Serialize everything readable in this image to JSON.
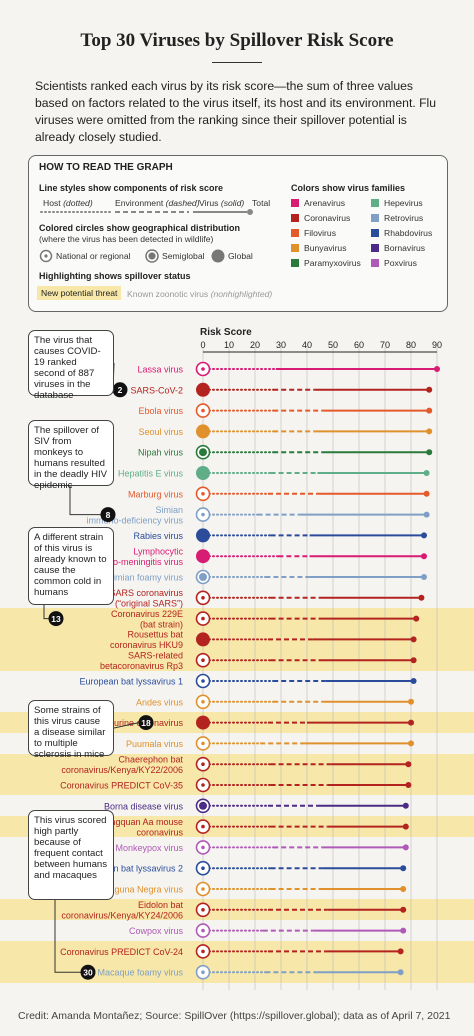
{
  "title": "Top 30 Viruses by Spillover Risk Score",
  "intro": "Scientists ranked each virus by its risk score—the sum of three values based on factors related to the virus itself, its host and its environment. Flu viruses were omitted from the ranking since their spillover potential is already closely studied.",
  "legend": {
    "heading": "HOW TO READ THE GRAPH",
    "line_styles_title": "Line styles show components of risk score",
    "host_label": "Host",
    "host_style": "(dotted)",
    "env_label": "Environment",
    "env_style": "(dashed)",
    "virus_label": "Virus",
    "virus_style": "(solid)",
    "total_label": "Total",
    "circles_title": "Colored circles show geographical distribution",
    "circles_sub": "(where the virus has been detected in wildlife)",
    "dist_national": "National or regional",
    "dist_semiglobal": "Semiglobal",
    "dist_global": "Global",
    "highlight_title": "Highlighting shows spillover status",
    "new_threat": "New potential threat",
    "known_zoonotic": "Known zoonotic virus",
    "known_zoonotic_note": "(nonhighlighted)",
    "families_title": "Colors show virus families",
    "families": [
      {
        "name": "Arenavirus",
        "color": "#d81b73"
      },
      {
        "name": "Coronavirus",
        "color": "#b3231f"
      },
      {
        "name": "Filovirus",
        "color": "#e45a2b"
      },
      {
        "name": "Bunyavirus",
        "color": "#e0912c"
      },
      {
        "name": "Paramyxovirus",
        "color": "#2a7a3b"
      },
      {
        "name": "Hepevirus",
        "color": "#5fae88"
      },
      {
        "name": "Retrovirus",
        "color": "#7f9fc6"
      },
      {
        "name": "Rhabdovirus",
        "color": "#2b4c9b"
      },
      {
        "name": "Bornavirus",
        "color": "#4b2b86"
      },
      {
        "name": "Poxvirus",
        "color": "#b05ab7"
      }
    ]
  },
  "annotations": [
    {
      "text": "The virus that causes COVID-19 ranked second of 887 viruses in the database",
      "marker": "2"
    },
    {
      "text": "The spillover of SIV from monkeys to humans resulted in the deadly HIV epidemic",
      "marker": "8"
    },
    {
      "text": "A different strain of this virus is already known to cause the common cold in humans",
      "marker": "13"
    },
    {
      "text": "Some strains of this virus cause a disease similar to multiple sclerosis in mice",
      "marker": "18"
    },
    {
      "text": "This virus scored high partly because of frequent contact between humans and macaques",
      "marker": "30"
    }
  ],
  "chart_data": {
    "type": "line",
    "title": "Risk Score",
    "xlim": [
      0,
      90
    ],
    "ticks": [
      0,
      10,
      20,
      30,
      40,
      50,
      60,
      70,
      80,
      90
    ],
    "series": [
      {
        "name": "Lassa virus",
        "family": "Arenavirus",
        "distribution": "national",
        "new_threat": false,
        "host": 28,
        "environment": 0,
        "virus": 62,
        "total": 90
      },
      {
        "name": "SARS-CoV-2",
        "family": "Coronavirus",
        "distribution": "global",
        "new_threat": false,
        "host": 27,
        "environment": 16,
        "virus": 44,
        "total": 87
      },
      {
        "name": "Ebola virus",
        "family": "Filovirus",
        "distribution": "national",
        "new_threat": false,
        "host": 27,
        "environment": 19,
        "virus": 41,
        "total": 87
      },
      {
        "name": "Seoul virus",
        "family": "Bunyavirus",
        "distribution": "global",
        "new_threat": false,
        "host": 27,
        "environment": 16,
        "virus": 44,
        "total": 87
      },
      {
        "name": "Nipah virus",
        "family": "Paramyxovirus",
        "distribution": "semiglobal",
        "new_threat": false,
        "host": 27,
        "environment": 19,
        "virus": 41,
        "total": 87
      },
      {
        "name": "Hepatitis E virus",
        "family": "Hepevirus",
        "distribution": "global",
        "new_threat": false,
        "host": 26,
        "environment": 18,
        "virus": 42,
        "total": 86
      },
      {
        "name": "Marburg virus",
        "family": "Filovirus",
        "distribution": "national",
        "new_threat": false,
        "host": 25,
        "environment": 19,
        "virus": 42,
        "total": 86
      },
      {
        "name": "Simian immuno-deficiency virus",
        "family": "Retrovirus",
        "distribution": "national",
        "new_threat": false,
        "host": 21,
        "environment": 16,
        "virus": 49,
        "total": 86
      },
      {
        "name": "Rabies virus",
        "family": "Rhabdovirus",
        "distribution": "global",
        "new_threat": false,
        "host": 26,
        "environment": 15,
        "virus": 44,
        "total": 85
      },
      {
        "name": "Lymphocytic chorio-meningitis virus",
        "family": "Arenavirus",
        "distribution": "global",
        "new_threat": false,
        "host": 29,
        "environment": 12,
        "virus": 44,
        "total": 85
      },
      {
        "name": "Simian foamy virus",
        "family": "Retrovirus",
        "distribution": "semiglobal",
        "new_threat": false,
        "host": 24,
        "environment": 17,
        "virus": 44,
        "total": 85
      },
      {
        "name": "SARS coronavirus (“original SARS”)",
        "family": "Coronavirus",
        "distribution": "national",
        "new_threat": false,
        "host": 26,
        "environment": 19,
        "virus": 39,
        "total": 84
      },
      {
        "name": "Coronavirus 229E (bat strain)",
        "family": "Coronavirus",
        "distribution": "national",
        "new_threat": true,
        "host": 26,
        "environment": 19,
        "virus": 37,
        "total": 82
      },
      {
        "name": "Rousettus bat coronavirus HKU9",
        "family": "Coronavirus",
        "distribution": "global",
        "new_threat": true,
        "host": 25,
        "environment": 17,
        "virus": 39,
        "total": 81
      },
      {
        "name": "SARS-related betacoronavirus Rp3",
        "family": "Coronavirus",
        "distribution": "national",
        "new_threat": true,
        "host": 26,
        "environment": 19,
        "virus": 36,
        "total": 81
      },
      {
        "name": "European bat lyssavirus 1",
        "family": "Rhabdovirus",
        "distribution": "national",
        "new_threat": false,
        "host": 27,
        "environment": 20,
        "virus": 34,
        "total": 81
      },
      {
        "name": "Andes virus",
        "family": "Bunyavirus",
        "distribution": "national",
        "new_threat": false,
        "host": 27,
        "environment": 19,
        "virus": 34,
        "total": 80
      },
      {
        "name": "Murine coronavirus",
        "family": "Coronavirus",
        "distribution": "global",
        "new_threat": true,
        "host": 25,
        "environment": 15,
        "virus": 40,
        "total": 80
      },
      {
        "name": "Puumala virus",
        "family": "Bunyavirus",
        "distribution": "national",
        "new_threat": false,
        "host": 22,
        "environment": 17,
        "virus": 41,
        "total": 80
      },
      {
        "name": "Chaerephon bat coronavirus/Kenya/KY22/2006",
        "family": "Coronavirus",
        "distribution": "national",
        "new_threat": true,
        "host": 26,
        "environment": 23,
        "virus": 30,
        "total": 79
      },
      {
        "name": "Coronavirus PREDICT CoV-35",
        "family": "Coronavirus",
        "distribution": "national",
        "new_threat": true,
        "host": 26,
        "environment": 22,
        "virus": 31,
        "total": 79
      },
      {
        "name": "Borna disease virus",
        "family": "Bornavirus",
        "distribution": "semiglobal",
        "new_threat": false,
        "host": 25,
        "environment": 19,
        "virus": 34,
        "total": 78
      },
      {
        "name": "Longquan Aa mouse coronavirus",
        "family": "Coronavirus",
        "distribution": "national",
        "new_threat": true,
        "host": 26,
        "environment": 22,
        "virus": 30,
        "total": 78
      },
      {
        "name": "Monkeypox virus",
        "family": "Poxvirus",
        "distribution": "national",
        "new_threat": false,
        "host": 27,
        "environment": 19,
        "virus": 32,
        "total": 78
      },
      {
        "name": "European bat lyssavirus 2",
        "family": "Rhabdovirus",
        "distribution": "national",
        "new_threat": false,
        "host": 26,
        "environment": 20,
        "virus": 31,
        "total": 77
      },
      {
        "name": "Laguna Negra virus",
        "family": "Bunyavirus",
        "distribution": "national",
        "new_threat": false,
        "host": 26,
        "environment": 19,
        "virus": 32,
        "total": 77
      },
      {
        "name": "Eidolon bat coronavirus/Kenya/KY24/2006",
        "family": "Coronavirus",
        "distribution": "national",
        "new_threat": true,
        "host": 25,
        "environment": 23,
        "virus": 29,
        "total": 77
      },
      {
        "name": "Cowpox virus",
        "family": "Poxvirus",
        "distribution": "national",
        "new_threat": false,
        "host": 23,
        "environment": 19,
        "virus": 35,
        "total": 77
      },
      {
        "name": "Coronavirus PREDICT CoV-24",
        "family": "Coronavirus",
        "distribution": "national",
        "new_threat": true,
        "host": 25,
        "environment": 22,
        "virus": 29,
        "total": 76
      },
      {
        "name": "Macaque foamy virus",
        "family": "Retrovirus",
        "distribution": "national",
        "new_threat": true,
        "host": 24,
        "environment": 20,
        "virus": 32,
        "total": 76
      }
    ]
  },
  "credit": "Credit: Amanda Montañez; Source: SpillOver (https://spillover.global); data as of April 7, 2021"
}
